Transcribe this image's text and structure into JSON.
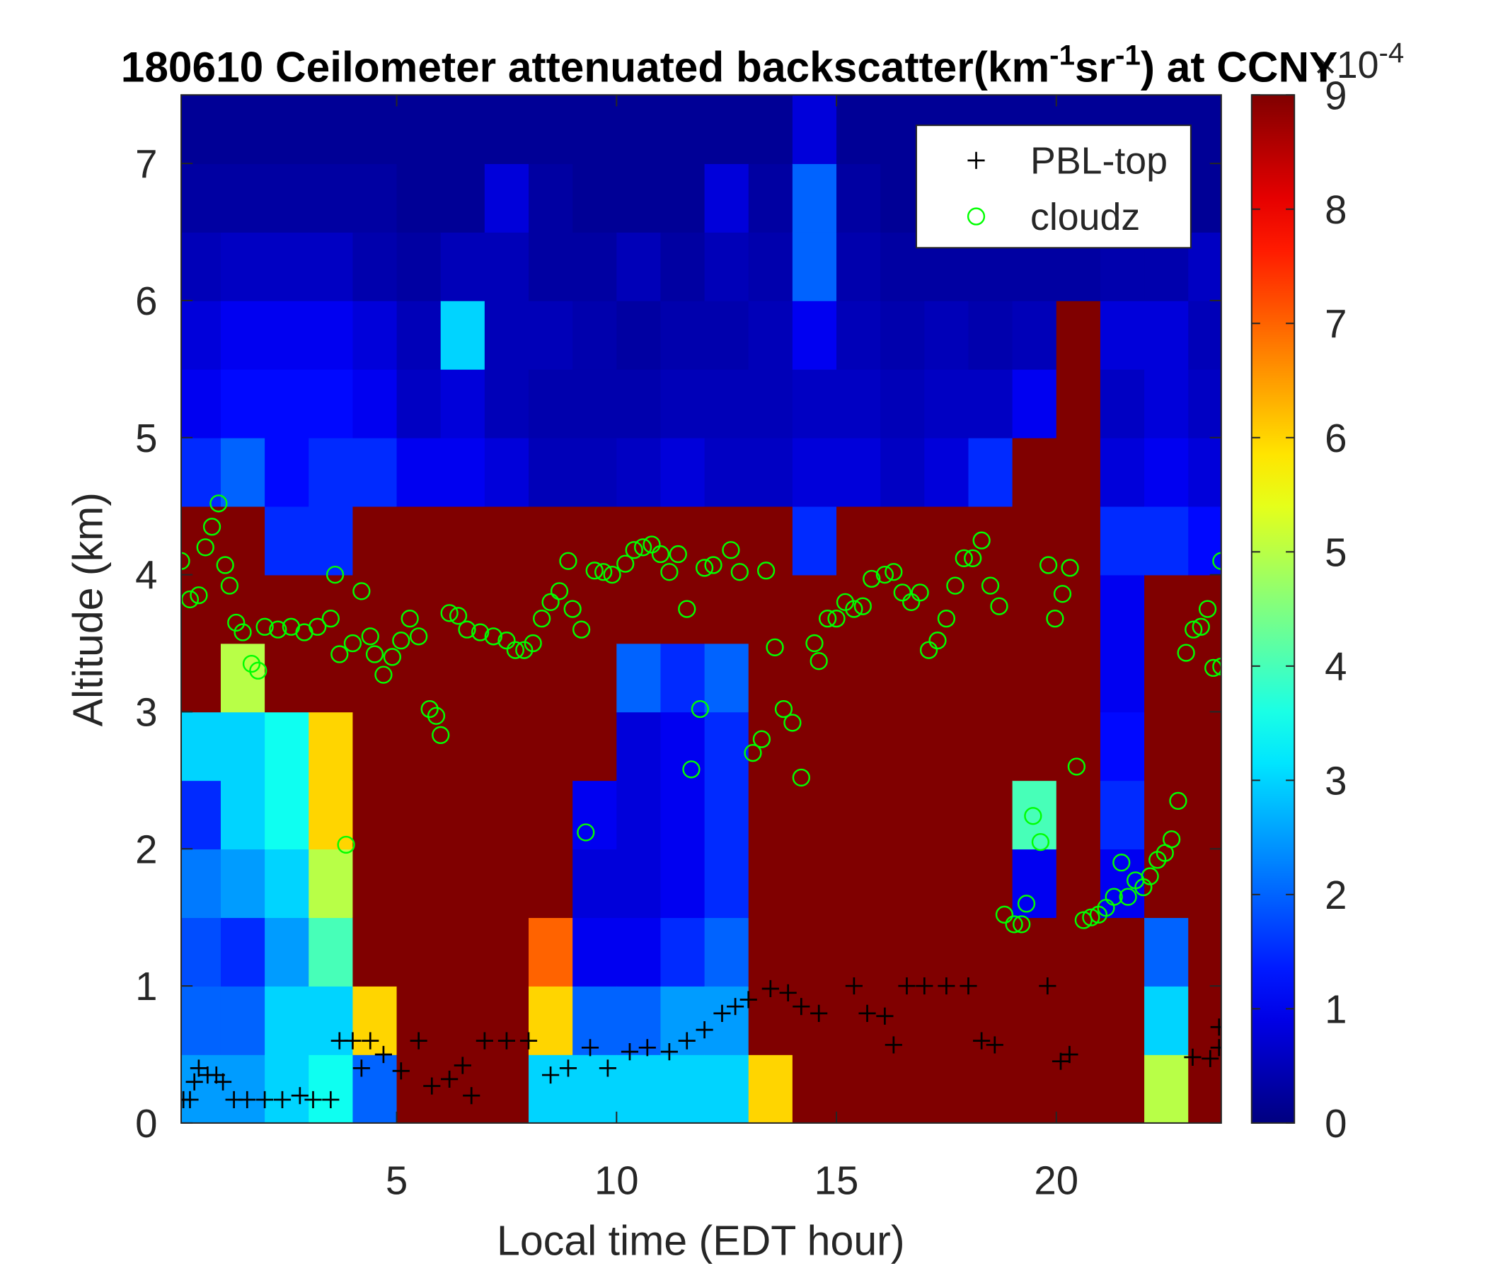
{
  "chart_data": {
    "type": "heatmap",
    "title": [
      "180610 Ceilometer attenuated backscatter(km",
      "-1",
      "sr",
      "-1",
      ") at CCNY"
    ],
    "x_label": "Local time (EDT hour)",
    "y_label": "Altitude (km)",
    "colorbar_label": [
      "×10",
      "-4"
    ],
    "colormap": "jet",
    "xlim": [
      0.1,
      23.75
    ],
    "xticks": [
      5,
      10,
      15,
      20
    ],
    "ylim": [
      0,
      7.5
    ],
    "yticks": [
      0,
      1,
      2,
      3,
      4,
      5,
      6,
      7
    ],
    "clim": [
      0,
      9
    ],
    "cticks": [
      0,
      1,
      2,
      3,
      4,
      5,
      6,
      7,
      8,
      9
    ],
    "x": [
      0.5,
      1.5,
      2.5,
      3.5,
      4.5,
      5.5,
      6.5,
      7.5,
      8.5,
      9.5,
      10.5,
      11.5,
      12.5,
      13.5,
      14.5,
      15.5,
      16.5,
      17.5,
      18.5,
      19.5,
      20.5,
      21.5,
      22.5,
      23.5
    ],
    "y": [
      0.25,
      0.75,
      1.25,
      1.75,
      2.25,
      2.75,
      3.25,
      3.75,
      4.25,
      4.75,
      5.25,
      5.75,
      6.25,
      6.75,
      7.25
    ],
    "z": [
      [
        2.5,
        2,
        1.8,
        2.2,
        1.5,
        3,
        9,
        9,
        9,
        1.5,
        1,
        0.8,
        0.5,
        0.3,
        0.2
      ],
      [
        2.5,
        2,
        1.5,
        2.5,
        3,
        3,
        5,
        9,
        9,
        2,
        1.2,
        1,
        0.6,
        0.3,
        0.2
      ],
      [
        3,
        3,
        2.5,
        3,
        3.5,
        3.5,
        9,
        9,
        1.5,
        1.2,
        1.2,
        1,
        0.6,
        0.3,
        0.2
      ],
      [
        3.5,
        3,
        4,
        5,
        6,
        6,
        9,
        9,
        1.5,
        1.5,
        1.2,
        1,
        0.6,
        0.3,
        0.2
      ],
      [
        2,
        6,
        9,
        9,
        9,
        9,
        9,
        9,
        9,
        1.5,
        1,
        0.8,
        0.4,
        0.3,
        0.2
      ],
      [
        9,
        9,
        9,
        9,
        9,
        9,
        9,
        9,
        9,
        1,
        0.6,
        0.5,
        0.3,
        0.2,
        0.2
      ],
      [
        9,
        9,
        9,
        9,
        9,
        9,
        9,
        9,
        9,
        1,
        0.8,
        3,
        0.5,
        0.2,
        0.2
      ],
      [
        9,
        9,
        9,
        9,
        9,
        9,
        9,
        9,
        9,
        0.8,
        0.5,
        0.5,
        0.5,
        0.8,
        0.2
      ],
      [
        3,
        6,
        7,
        9,
        9,
        9,
        9,
        9,
        9,
        0.5,
        0.4,
        0.5,
        0.3,
        0.3,
        0.2
      ],
      [
        3,
        2,
        1,
        0.8,
        1,
        9,
        9,
        9,
        9,
        0.5,
        0.4,
        0.4,
        0.3,
        0.2,
        0.2
      ],
      [
        3,
        2,
        1,
        0.8,
        0.8,
        0.8,
        2,
        9,
        9,
        0.6,
        0.4,
        0.3,
        0.5,
        0.2,
        0.2
      ],
      [
        3,
        2.5,
        1.5,
        1,
        1,
        1,
        1.5,
        9,
        9,
        0.8,
        0.5,
        0.4,
        0.3,
        0.2,
        0.2
      ],
      [
        3,
        2.5,
        2,
        1.5,
        1.5,
        1.5,
        2,
        9,
        9,
        0.6,
        0.5,
        0.4,
        0.5,
        0.8,
        0.2
      ],
      [
        6,
        9,
        9,
        9,
        9,
        9,
        9,
        9,
        9,
        0.6,
        0.5,
        0.5,
        0.4,
        0.3,
        0.2
      ],
      [
        9,
        9,
        9,
        9,
        9,
        9,
        9,
        9,
        1.5,
        0.8,
        0.6,
        1,
        2,
        2,
        0.8
      ],
      [
        9,
        9,
        9,
        9,
        9,
        9,
        9,
        9,
        9,
        0.8,
        0.6,
        0.5,
        0.4,
        0.3,
        0.2
      ],
      [
        9,
        9,
        9,
        9,
        9,
        9,
        9,
        9,
        9,
        0.6,
        0.5,
        0.4,
        0.3,
        0.2,
        0.2
      ],
      [
        9,
        9,
        9,
        9,
        9,
        9,
        9,
        9,
        9,
        0.8,
        0.6,
        0.5,
        0.3,
        0.2,
        0.2
      ],
      [
        9,
        9,
        9,
        9,
        9,
        9,
        9,
        9,
        9,
        1.5,
        0.6,
        0.4,
        0.3,
        0.2,
        0.2
      ],
      [
        9,
        9,
        9,
        1,
        4,
        9,
        9,
        9,
        9,
        9,
        1,
        0.5,
        0.3,
        0.2,
        0.2
      ],
      [
        9,
        9,
        9,
        9,
        9,
        9,
        9,
        9,
        9,
        9,
        9,
        9,
        0.3,
        0.2,
        0.2
      ],
      [
        9,
        9,
        9,
        1,
        1.5,
        1.2,
        1,
        1,
        1.5,
        0.8,
        0.6,
        0.8,
        0.4,
        0.2,
        0.2
      ],
      [
        5,
        3,
        2,
        9,
        9,
        9,
        9,
        9,
        1.5,
        1,
        0.8,
        0.8,
        0.4,
        0.2,
        0.2
      ],
      [
        9,
        9,
        9,
        9,
        9,
        9,
        9,
        9,
        1.2,
        0.8,
        0.6,
        0.5,
        0.6,
        0.2,
        0.2
      ]
    ],
    "series": [
      {
        "name": "PBL-top",
        "type": "scatter",
        "marker": "+",
        "color": "#000000",
        "x": [
          0.15,
          0.3,
          0.4,
          0.5,
          0.7,
          0.9,
          1.05,
          1.3,
          1.6,
          2,
          2.4,
          2.8,
          3.1,
          3.5,
          3.7,
          4,
          4.2,
          4.4,
          4.7,
          5.1,
          5.5,
          5.8,
          6.2,
          6.5,
          6.7,
          7,
          7.5,
          8,
          8.5,
          8.9,
          9.4,
          9.8,
          10.3,
          10.7,
          11.2,
          11.6,
          12,
          12.4,
          12.7,
          13,
          13.5,
          13.9,
          14.2,
          14.6,
          15.4,
          15.7,
          16.1,
          16.3,
          16.6,
          17,
          17.5,
          18,
          18.3,
          18.6,
          19.8,
          20.1,
          20.3,
          23.1,
          23.5,
          23.7,
          23.7
        ],
        "values": [
          0.17,
          0.17,
          0.3,
          0.4,
          0.35,
          0.35,
          0.3,
          0.17,
          0.17,
          0.17,
          0.17,
          0.2,
          0.17,
          0.17,
          0.6,
          0.6,
          0.4,
          0.6,
          0.5,
          0.38,
          0.6,
          0.27,
          0.32,
          0.42,
          0.2,
          0.6,
          0.6,
          0.6,
          0.35,
          0.4,
          0.55,
          0.4,
          0.52,
          0.55,
          0.52,
          0.6,
          0.68,
          0.8,
          0.85,
          0.9,
          0.98,
          0.95,
          0.85,
          0.8,
          1,
          0.8,
          0.78,
          0.57,
          1,
          1,
          1,
          1,
          0.6,
          0.57,
          1,
          0.45,
          0.5,
          0.48,
          0.47,
          0.7,
          0.55
        ]
      },
      {
        "name": "cloudz",
        "type": "scatter",
        "marker": "o",
        "color": "#00ff00",
        "x": [
          0.1,
          0.3,
          0.5,
          0.65,
          0.8,
          0.95,
          1.1,
          1.2,
          1.35,
          1.5,
          1.7,
          1.85,
          2,
          2.3,
          2.6,
          2.9,
          3.2,
          3.5,
          3.6,
          3.7,
          3.85,
          4,
          4.2,
          4.4,
          4.5,
          4.7,
          4.9,
          5.1,
          5.3,
          5.5,
          5.75,
          5.9,
          6,
          6.2,
          6.4,
          6.6,
          6.9,
          7.2,
          7.5,
          7.7,
          7.9,
          8.1,
          8.3,
          8.5,
          8.7,
          8.9,
          9,
          9.2,
          9.3,
          9.5,
          9.7,
          9.9,
          10.2,
          10.4,
          10.6,
          10.8,
          11,
          11.2,
          11.4,
          11.6,
          11.7,
          11.9,
          12,
          12.2,
          12.6,
          12.8,
          13.1,
          13.3,
          13.4,
          13.6,
          13.8,
          14,
          14.2,
          14.5,
          14.6,
          14.8,
          15,
          15.2,
          15.4,
          15.6,
          15.8,
          16.1,
          16.3,
          16.5,
          16.7,
          16.9,
          17.1,
          17.3,
          17.5,
          17.7,
          17.9,
          18.1,
          18.3,
          18.5,
          18.7,
          18.82,
          19.04,
          19.21,
          19.32,
          19.47,
          19.64,
          19.82,
          19.97,
          20.14,
          20.31,
          20.46,
          20.62,
          20.79,
          20.96,
          21.13,
          21.31,
          21.48,
          21.63,
          21.8,
          21.98,
          22.13,
          22.3,
          22.47,
          22.62,
          22.77,
          22.95,
          23.12,
          23.29,
          23.44,
          23.57,
          23.75,
          23.75
        ],
        "values": [
          4.1,
          3.82,
          3.85,
          4.2,
          4.35,
          4.52,
          4.07,
          3.92,
          3.65,
          3.58,
          3.35,
          3.3,
          3.62,
          3.6,
          3.62,
          3.58,
          3.62,
          3.68,
          4,
          3.42,
          2.03,
          3.5,
          3.88,
          3.55,
          3.42,
          3.27,
          3.4,
          3.52,
          3.68,
          3.55,
          3.02,
          2.97,
          2.83,
          3.72,
          3.7,
          3.6,
          3.58,
          3.55,
          3.52,
          3.45,
          3.45,
          3.5,
          3.68,
          3.8,
          3.88,
          4.1,
          3.75,
          3.6,
          2.12,
          4.03,
          4.02,
          4,
          4.08,
          4.18,
          4.2,
          4.22,
          4.15,
          4.02,
          4.15,
          3.75,
          2.58,
          3.02,
          4.05,
          4.07,
          4.18,
          4.02,
          2.7,
          2.8,
          4.03,
          3.47,
          3.02,
          2.92,
          2.52,
          3.5,
          3.37,
          3.68,
          3.68,
          3.8,
          3.75,
          3.77,
          3.97,
          4,
          4.02,
          3.87,
          3.8,
          3.87,
          3.45,
          3.52,
          3.68,
          3.92,
          4.12,
          4.12,
          4.25,
          3.92,
          3.77,
          1.52,
          1.45,
          1.45,
          1.6,
          2.24,
          2.05,
          4.07,
          3.68,
          3.86,
          4.05,
          2.6,
          1.48,
          1.5,
          1.52,
          1.57,
          1.65,
          1.9,
          1.65,
          1.77,
          1.72,
          1.8,
          1.92,
          1.97,
          2.07,
          2.35,
          3.43,
          3.6,
          3.62,
          3.75,
          3.32,
          3.33,
          4.1
        ]
      }
    ],
    "legend_position": "upper right"
  }
}
